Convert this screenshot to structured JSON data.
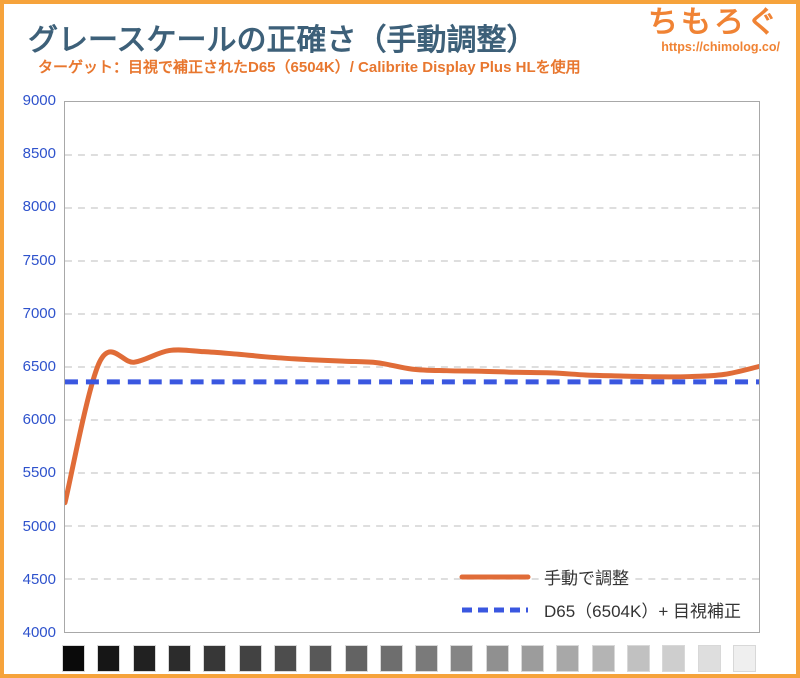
{
  "header": {
    "title": "グレースケールの正確さ（手動調整）",
    "subtitle": "ターゲット：目視で補正されたD65（6504K）/ Calibrite Display Plus HLを使用",
    "logo_text": "ちもろぐ",
    "logo_url": "https://chimolog.co/"
  },
  "chart_data": {
    "type": "line",
    "title": "グレースケールの正確さ（手動調整）",
    "xlabel": "",
    "ylabel": "",
    "x_percent": [
      0,
      5,
      10,
      15,
      20,
      25,
      30,
      35,
      40,
      45,
      50,
      55,
      60,
      65,
      70,
      75,
      80,
      85,
      90,
      95,
      100
    ],
    "series": [
      {
        "name": "手動で調整",
        "color": "#E06C38",
        "style": "solid",
        "values": [
          5220,
          6550,
          6545,
          6655,
          6645,
          6620,
          6590,
          6570,
          6555,
          6540,
          6480,
          6465,
          6460,
          6450,
          6445,
          6425,
          6415,
          6408,
          6410,
          6430,
          6505
        ]
      },
      {
        "name": "D65（6504K）+ 目視補正",
        "color": "#3A57E0",
        "style": "dashed",
        "constant_value": 6360
      }
    ],
    "ylim": [
      4000,
      9000
    ],
    "yticks": [
      9000,
      8500,
      8000,
      7500,
      7000,
      6500,
      6000,
      5500,
      5000,
      4500,
      4000
    ],
    "grid": "horizontal dashed",
    "legend_position": "inside bottom-right"
  },
  "grayscale_swatches": [
    "#0A0A0A",
    "#161616",
    "#212121",
    "#2C2C2C",
    "#373737",
    "#424242",
    "#4D4D4D",
    "#585858",
    "#636363",
    "#6E6E6E",
    "#7A7A7A",
    "#858585",
    "#909090",
    "#9C9C9C",
    "#A8A8A8",
    "#B4B4B4",
    "#C1C1C1",
    "#CECECE",
    "#DEDEDE",
    "#EFEFEF"
  ],
  "colors": {
    "frame_border": "#F6A33B",
    "title_text": "#3D6079",
    "subtitle_text": "#E8772F",
    "logo_text": "#F08334",
    "axis_label": "#2E52CC",
    "gridline": "#CBCBCB",
    "plot_border": "#A8A8A8",
    "legend_text": "#333333"
  }
}
